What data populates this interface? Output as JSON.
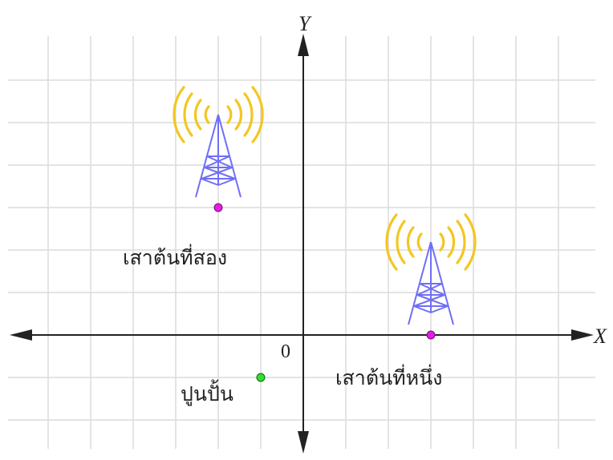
{
  "axes": {
    "x_label": "X",
    "y_label": "Y",
    "origin_label": "0"
  },
  "points": [
    {
      "label": "เสาต้นที่สอง"
    },
    {
      "label": "เสาต้นที่หนึ่ง"
    },
    {
      "label": "ปูนปั้น"
    }
  ]
}
